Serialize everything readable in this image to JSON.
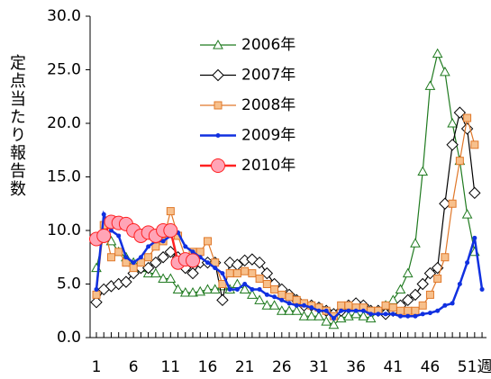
{
  "chart_data": {
    "type": "line",
    "y_label": "定点当たり報告数",
    "x_label": "週",
    "x": [
      1,
      2,
      3,
      4,
      5,
      6,
      7,
      8,
      9,
      10,
      11,
      12,
      13,
      14,
      15,
      16,
      17,
      18,
      19,
      20,
      21,
      22,
      23,
      24,
      25,
      26,
      27,
      28,
      29,
      30,
      31,
      32,
      33,
      34,
      35,
      36,
      37,
      38,
      39,
      40,
      41,
      42,
      43,
      44,
      45,
      46,
      47,
      48,
      49,
      50,
      51,
      52,
      53
    ],
    "xlim": [
      0.15,
      53.6
    ],
    "xticks": [
      1,
      6,
      11,
      16,
      21,
      26,
      31,
      36,
      41,
      46,
      51
    ],
    "ylim": [
      0,
      30
    ],
    "yticks": [
      {
        "value": 0,
        "label": "0.0"
      },
      {
        "value": 5,
        "label": "5.0"
      },
      {
        "value": 10,
        "label": "10.0"
      },
      {
        "value": 15,
        "label": "15.0"
      },
      {
        "value": 20,
        "label": "20.0"
      },
      {
        "value": 25,
        "label": "25.0"
      },
      {
        "value": 30,
        "label": "30.0"
      }
    ],
    "series": [
      {
        "name": "2006年",
        "color": "#1f7a1f",
        "marker": "triangle",
        "values": [
          6.5,
          9.5,
          9,
          8,
          7.5,
          7,
          6.5,
          6,
          6,
          5.5,
          5.5,
          4.5,
          4.2,
          4.2,
          4.3,
          4.5,
          4.5,
          4.8,
          4.5,
          5,
          4.5,
          4,
          3.5,
          3,
          3,
          2.5,
          2.5,
          2.5,
          2,
          2,
          2,
          1.5,
          1.2,
          1.8,
          2,
          2.2,
          2,
          1.8,
          2.5,
          3,
          3.5,
          4.5,
          6,
          8.8,
          15.5,
          23.5,
          26.5,
          24.8,
          20,
          16.5,
          11.5,
          8,
          null
        ]
      },
      {
        "name": "2007年",
        "color": "#000000",
        "marker": "diamond",
        "values": [
          3.3,
          4.5,
          4.8,
          5,
          5.2,
          6,
          6.5,
          6.5,
          7,
          7.5,
          8,
          7.5,
          6.5,
          6,
          7,
          7,
          7,
          3.5,
          7,
          6.8,
          7.2,
          7.3,
          7,
          6,
          5,
          4.5,
          4,
          3.5,
          3,
          3,
          2.8,
          2.5,
          2.2,
          2.5,
          3,
          3.2,
          3,
          2.5,
          2.5,
          2.2,
          2.5,
          3,
          3.5,
          4,
          5,
          6,
          6.5,
          12.5,
          18,
          21,
          19.5,
          13.5,
          null
        ]
      },
      {
        "name": "2008年",
        "color": "#e0782a",
        "marker": "square",
        "values": [
          4,
          10.5,
          7.5,
          8,
          7,
          6.5,
          7,
          7.5,
          8.5,
          9,
          11.8,
          9.5,
          7.5,
          8,
          8,
          9,
          7,
          5,
          6,
          6,
          6.2,
          6,
          5.5,
          5,
          4.5,
          4,
          3.8,
          3.5,
          3.2,
          3,
          2.8,
          2.5,
          2,
          3,
          3,
          2.8,
          2.8,
          2.5,
          2.5,
          3,
          2.8,
          2.5,
          2.5,
          2.5,
          3,
          4,
          5.5,
          7.5,
          12.5,
          16.5,
          20.5,
          18,
          null
        ]
      },
      {
        "name": "2009年",
        "color": "#1030e0",
        "marker": "dot",
        "values": [
          4.5,
          11.5,
          10,
          9.5,
          7.5,
          7,
          7.5,
          8.5,
          9,
          9,
          9.5,
          9.8,
          8.5,
          8,
          7.5,
          7,
          6.5,
          6,
          4.5,
          4.5,
          5,
          4.5,
          4.5,
          4,
          3.8,
          3.5,
          3.2,
          3,
          3,
          2.8,
          2.5,
          2.5,
          1.8,
          2.5,
          2.5,
          2.5,
          2.5,
          2.2,
          2.2,
          2.2,
          2.2,
          2,
          2,
          2,
          2.2,
          2.3,
          2.5,
          3,
          3.2,
          5,
          7,
          9.3,
          4.5
        ]
      },
      {
        "name": "2010年",
        "color": "#ff2020",
        "marker": "circle",
        "values": [
          9.2,
          9.5,
          10.8,
          10.7,
          10.6,
          10,
          9.5,
          9.8,
          9.5,
          10,
          10,
          7,
          7.3,
          7.2,
          null,
          null,
          null,
          null,
          null,
          null,
          null,
          null,
          null,
          null,
          null,
          null,
          null,
          null,
          null,
          null,
          null,
          null,
          null,
          null,
          null,
          null,
          null,
          null,
          null,
          null,
          null,
          null,
          null,
          null,
          null,
          null,
          null,
          null,
          null,
          null,
          null,
          null,
          null
        ]
      }
    ]
  }
}
